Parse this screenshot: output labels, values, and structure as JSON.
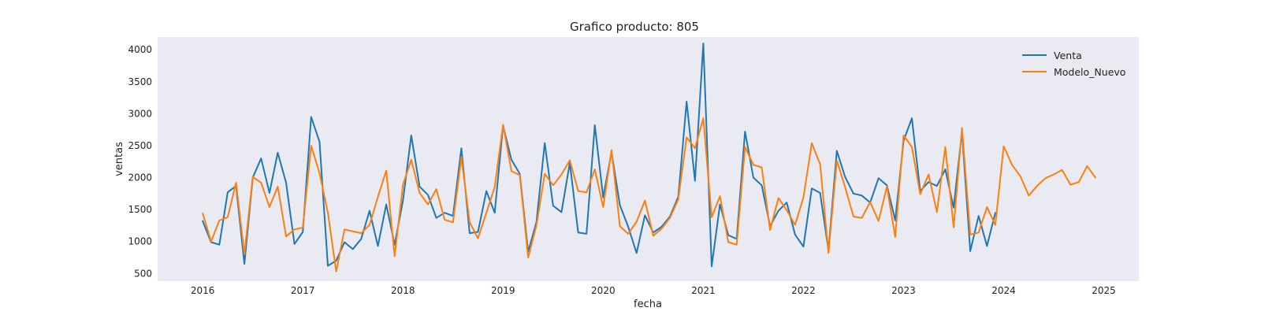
{
  "chart_data": {
    "type": "line",
    "title": "Grafico producto: 805",
    "xlabel": "fecha",
    "ylabel": "ventas",
    "xlim": [
      2015.55,
      2025.35
    ],
    "ylim": [
      380,
      4200
    ],
    "x_ticks": [
      2016,
      2017,
      2018,
      2019,
      2020,
      2021,
      2022,
      2023,
      2024,
      2025
    ],
    "x_tick_labels": [
      "2016",
      "2017",
      "2018",
      "2019",
      "2020",
      "2021",
      "2022",
      "2023",
      "2024",
      "2025"
    ],
    "y_ticks": [
      500,
      1000,
      1500,
      2000,
      2500,
      3000,
      3500,
      4000
    ],
    "y_tick_labels": [
      "500",
      "1000",
      "1500",
      "2000",
      "2500",
      "3000",
      "3500",
      "4000"
    ],
    "grid": false,
    "legend_position": "top-right",
    "colors": {
      "venta": "#1f77b4",
      "modelo_nuevo": "#ff7f0e",
      "plot_background": "#eaeaf2"
    },
    "start": [
      2016,
      1
    ],
    "series": [
      {
        "name": "Venta",
        "color": "#1f77b4",
        "values": [
          1320,
          990,
          950,
          1770,
          1870,
          650,
          2000,
          2300,
          1760,
          2390,
          1920,
          960,
          1150,
          2950,
          2560,
          620,
          700,
          990,
          880,
          1040,
          1480,
          930,
          1580,
          950,
          1640,
          2660,
          1860,
          1730,
          1370,
          1450,
          1400,
          2460,
          1130,
          1150,
          1790,
          1450,
          2810,
          2280,
          2060,
          840,
          1300,
          2540,
          1560,
          1460,
          2230,
          1140,
          1120,
          2820,
          1690,
          2400,
          1570,
          1230,
          820,
          1410,
          1140,
          1230,
          1390,
          1700,
          3190,
          1950,
          4100,
          610,
          1580,
          1100,
          1040,
          2720,
          2000,
          1880,
          1240,
          1480,
          1610,
          1110,
          920,
          1830,
          1760,
          860,
          2420,
          2010,
          1750,
          1720,
          1610,
          1990,
          1880,
          1330,
          2580,
          2930,
          1790,
          1930,
          1870,
          2130,
          1530,
          2720,
          850,
          1400,
          930,
          1450
        ]
      },
      {
        "name": "Modelo_Nuevo",
        "color": "#ff7f0e",
        "values": [
          1440,
          1000,
          1330,
          1380,
          1920,
          800,
          2010,
          1920,
          1540,
          1860,
          1080,
          1190,
          1220,
          2500,
          2070,
          1450,
          530,
          1190,
          1160,
          1130,
          1260,
          1700,
          2110,
          770,
          1890,
          2280,
          1760,
          1580,
          1820,
          1340,
          1300,
          2320,
          1300,
          1050,
          1450,
          1850,
          2830,
          2100,
          2040,
          750,
          1250,
          2060,
          1880,
          2050,
          2270,
          1790,
          1770,
          2130,
          1540,
          2430,
          1240,
          1120,
          1310,
          1640,
          1090,
          1200,
          1370,
          1660,
          2630,
          2460,
          2930,
          1380,
          1710,
          990,
          950,
          2480,
          2200,
          2160,
          1180,
          1680,
          1490,
          1260,
          1690,
          2540,
          2210,
          820,
          2270,
          1850,
          1390,
          1370,
          1620,
          1320,
          1860,
          1070,
          2660,
          2480,
          1740,
          2050,
          1460,
          2480,
          1220,
          2780,
          1110,
          1140,
          1540,
          1260,
          2490,
          2200,
          2020,
          1720,
          1870,
          1990,
          2050,
          2120,
          1890,
          1930,
          2180,
          2000
        ]
      }
    ]
  }
}
